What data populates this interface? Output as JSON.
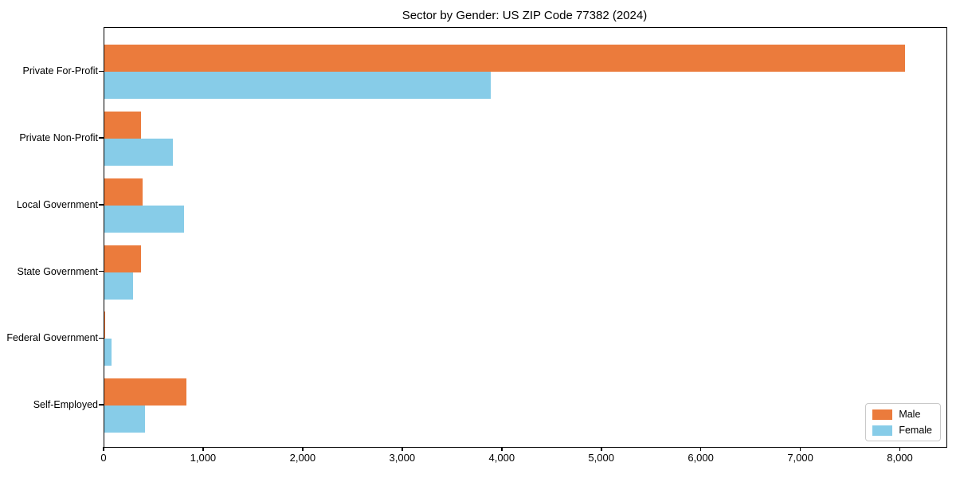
{
  "title": "Sector by Gender: US ZIP Code 77382 (2024)",
  "chart_data": {
    "type": "bar",
    "orientation": "horizontal",
    "title": "Sector by Gender: US ZIP Code 77382 (2024)",
    "categories": [
      "Private For-Profit",
      "Private Non-Profit",
      "Local Government",
      "State Government",
      "Federal Government",
      "Self-Employed"
    ],
    "series": [
      {
        "name": "Male",
        "color": "#EB7B3C",
        "values": [
          8040,
          370,
          385,
          370,
          10,
          825
        ]
      },
      {
        "name": "Female",
        "color": "#87CCE8",
        "values": [
          3880,
          690,
          800,
          285,
          75,
          410
        ]
      }
    ],
    "xlabel": "",
    "ylabel": "",
    "xlim": [
      0,
      8460
    ],
    "xticks": [
      0,
      1000,
      2000,
      3000,
      4000,
      5000,
      6000,
      7000,
      8000
    ],
    "xtick_labels": [
      "0",
      "1,000",
      "2,000",
      "3,000",
      "4,000",
      "5,000",
      "6,000",
      "7,000",
      "8,000"
    ],
    "grid": false,
    "legend_position": "lower right"
  }
}
